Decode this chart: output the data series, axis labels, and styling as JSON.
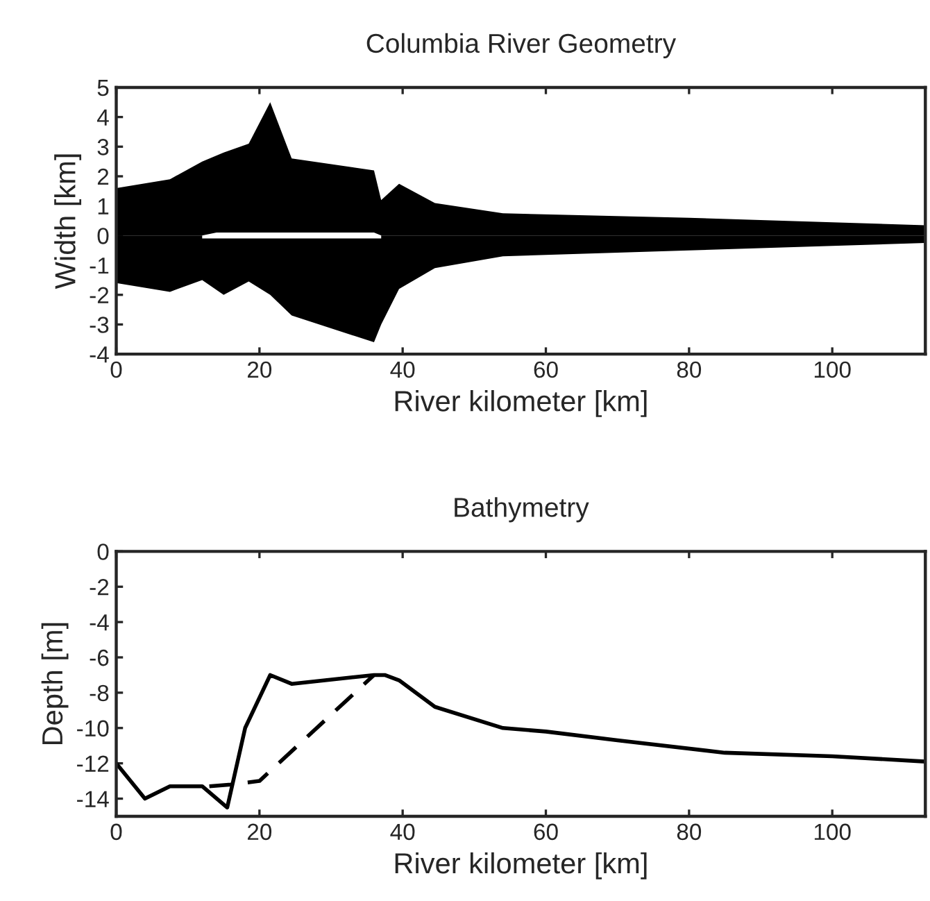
{
  "chart_data": [
    {
      "type": "area",
      "title": "Columbia River Geometry",
      "xlabel": "River kilometer [km]",
      "ylabel": "Width [km]",
      "x": [
        0,
        7.5,
        12,
        15,
        18.5,
        21.5,
        24.5,
        36,
        37,
        39.5,
        44.5,
        54,
        80,
        100,
        113
      ],
      "series": [
        {
          "color": "#000000",
          "values": [
            1.6,
            1.9,
            2.5,
            2.8,
            3.1,
            4.5,
            2.6,
            2.2,
            1.2,
            1.75,
            1.1,
            0.75,
            0.6,
            0.45,
            0.35
          ]
        },
        {
          "color": "#000000",
          "values": [
            -1.6,
            -1.9,
            -1.5,
            -2.0,
            -1.55,
            -2.0,
            -2.7,
            -3.6,
            -3.0,
            -1.8,
            -1.1,
            -0.7,
            -0.5,
            -0.35,
            -0.25
          ]
        }
      ],
      "xlim": [
        0,
        113
      ],
      "xticks": [
        0,
        20,
        40,
        60,
        80,
        100
      ],
      "ylim": [
        -4,
        5
      ],
      "yticks": [
        -4,
        -3,
        -2,
        -1,
        0,
        1,
        2,
        3,
        4,
        5
      ],
      "grid": false,
      "legend": false
    },
    {
      "type": "line",
      "title": "Bathymetry",
      "xlabel": "River kilometer [km]",
      "ylabel": "Depth [m]",
      "series": [
        {
          "color": "#000000",
          "line_style": "solid",
          "x": [
            0,
            4,
            7.5,
            12,
            15.5,
            18,
            21.5,
            24.5,
            36,
            37.5,
            39.5,
            44.5,
            54,
            60,
            70,
            85,
            100,
            113
          ],
          "values": [
            -12,
            -14,
            -13.3,
            -13.3,
            -14.5,
            -10,
            -7,
            -7.5,
            -7,
            -7,
            -7.3,
            -8.8,
            -10,
            -10.2,
            -10.7,
            -11.4,
            -11.6,
            -11.9
          ]
        },
        {
          "color": "#000000",
          "line_style": "dashed",
          "x": [
            13,
            16,
            20,
            36
          ],
          "values": [
            -13.3,
            -13.2,
            -13,
            -7
          ]
        }
      ],
      "xlim": [
        0,
        113
      ],
      "xticks": [
        0,
        20,
        40,
        60,
        80,
        100
      ],
      "ylim": [
        -15,
        0
      ],
      "yticks": [
        0,
        -2,
        -4,
        -6,
        -8,
        -10,
        -12,
        -14
      ],
      "grid": false,
      "legend": false
    }
  ]
}
